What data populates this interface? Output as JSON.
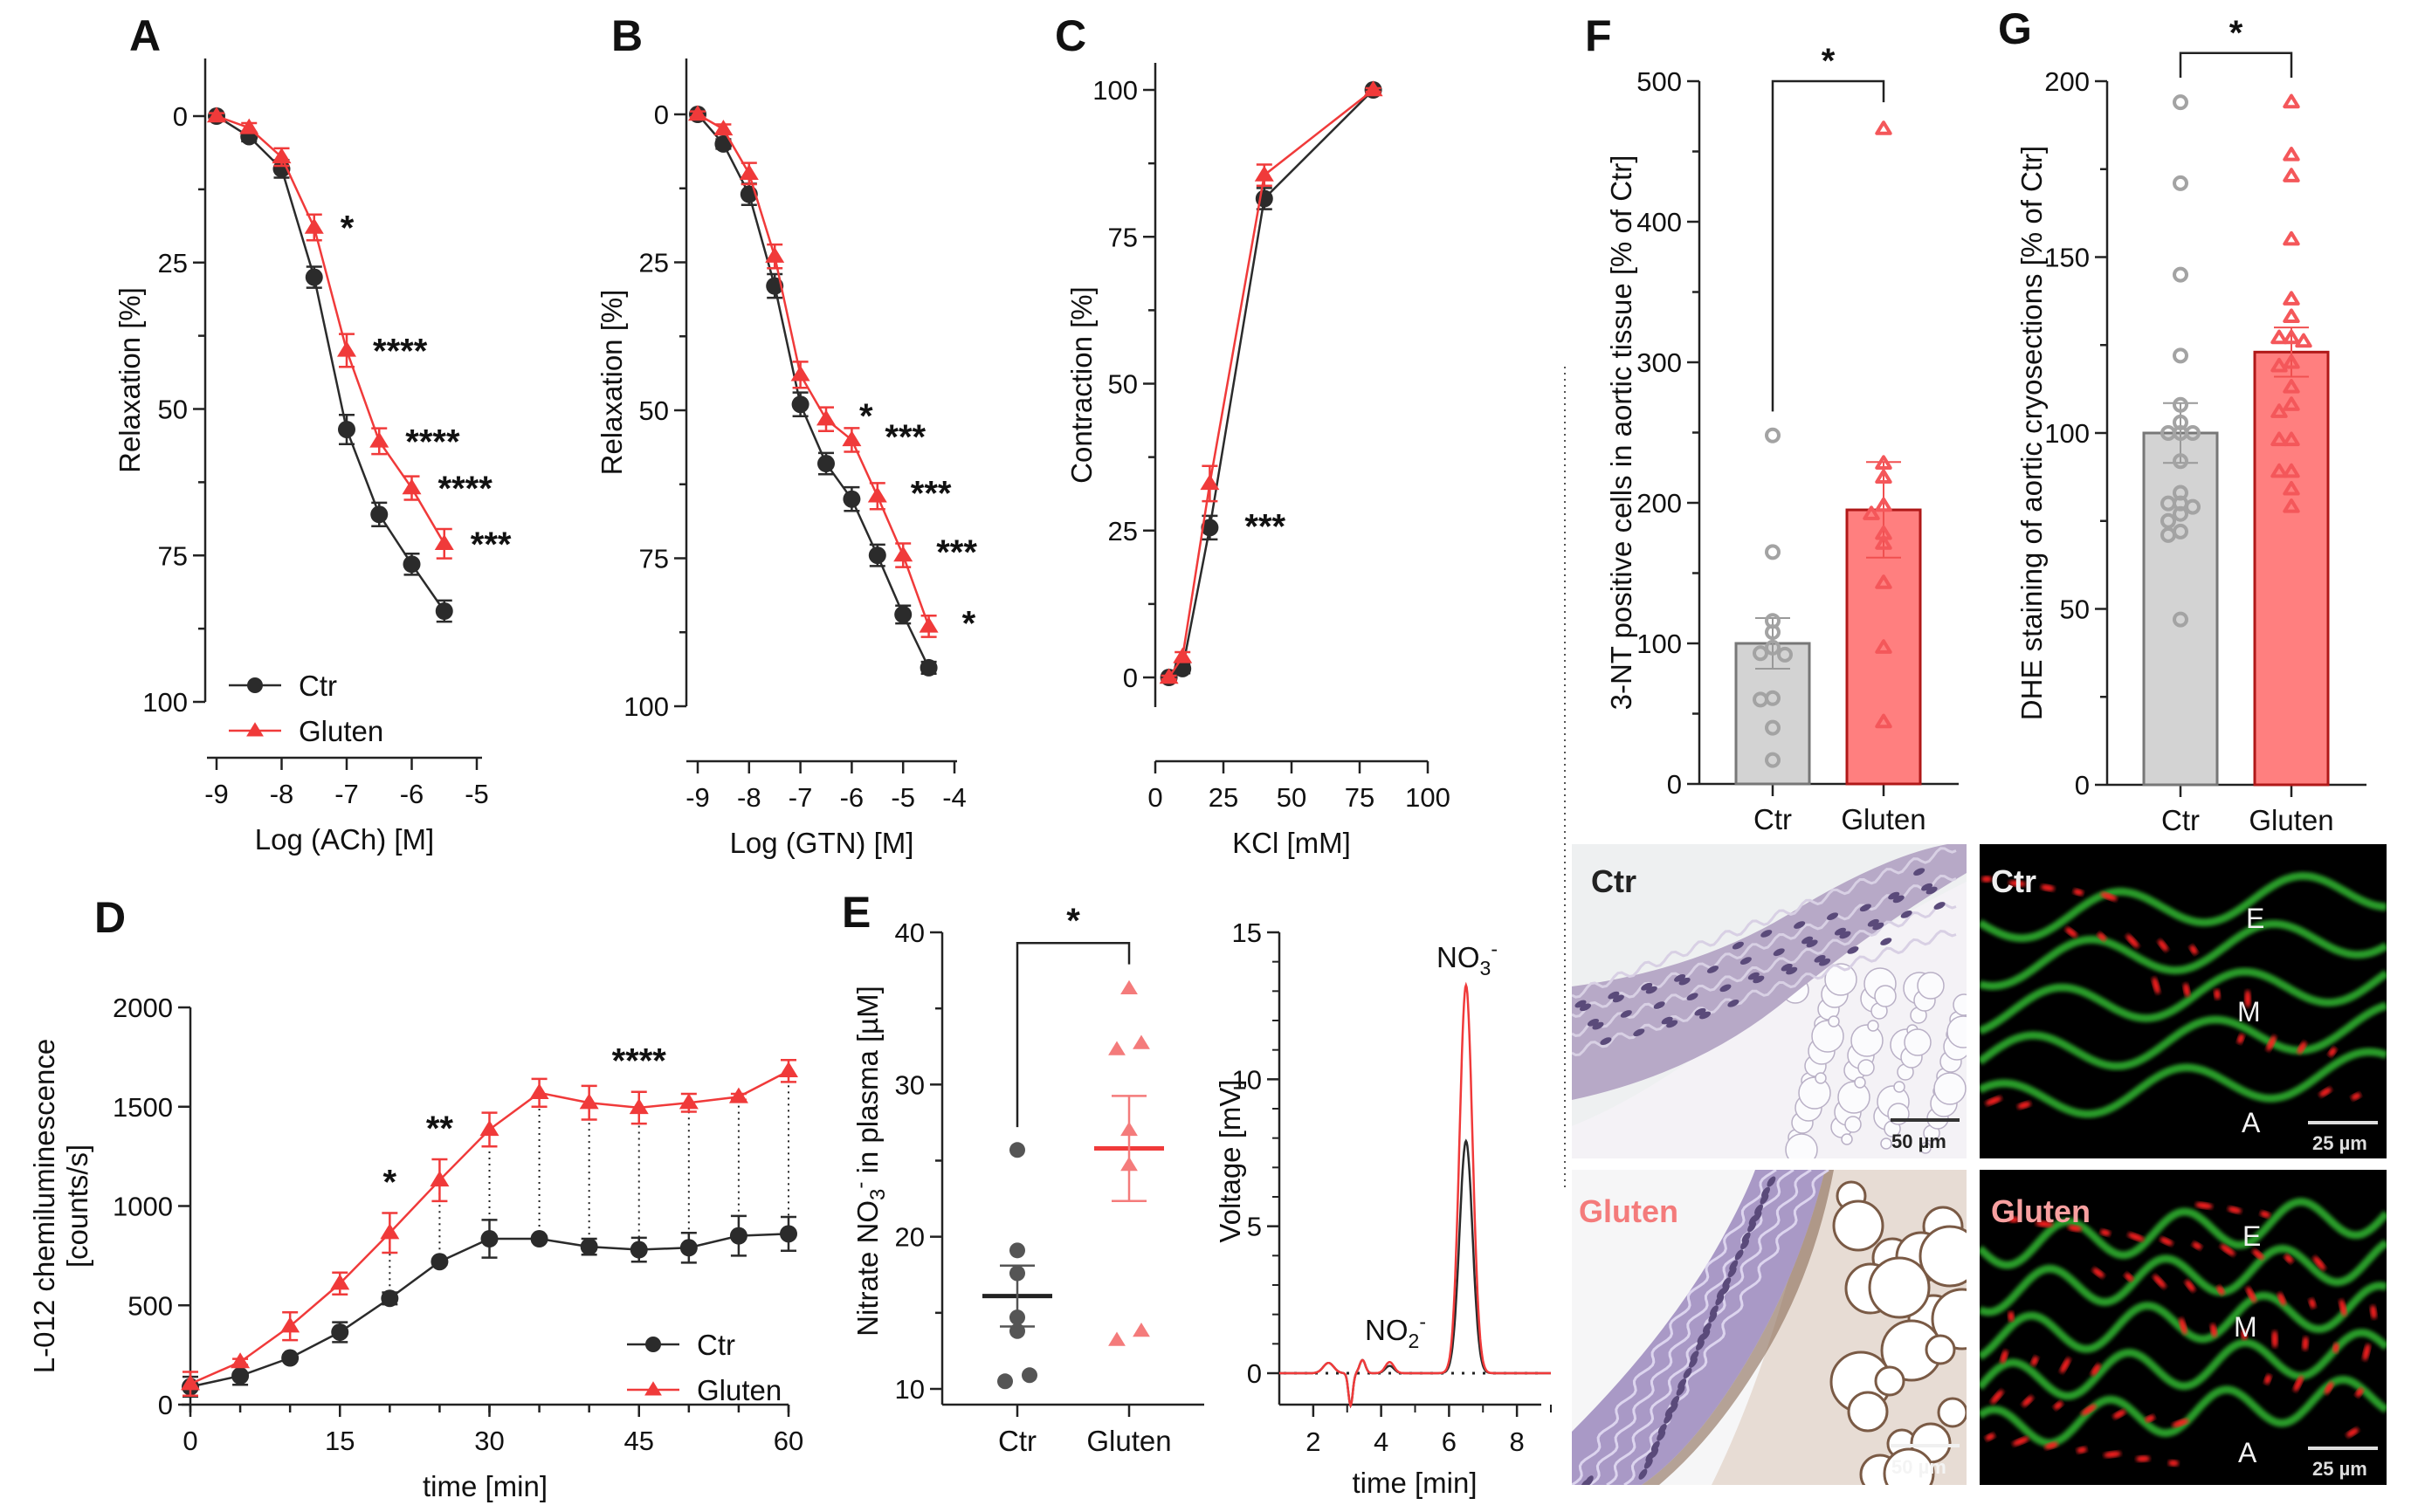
{
  "figure": {
    "colors": {
      "ctr": "#2b2b2b",
      "gluten": "#f03a3a",
      "ctr_bar": "#d3d3d3",
      "ctr_point": "#a3a3a3",
      "gluten_bar": "#ff7f7f",
      "gluten_point": "#f4575a",
      "gluten_label": "#f47b7b"
    }
  },
  "chart_data": [
    {
      "id": "A",
      "panel_letter": "A",
      "type": "line",
      "xlabel": "Log (ACh) [M]",
      "ylabel": "Relaxation [%]",
      "xlim": [
        -9,
        -5
      ],
      "ylim": [
        0,
        100
      ],
      "y_inverted": true,
      "xticks": [
        -9,
        -8,
        -7,
        -6,
        -5
      ],
      "xtick_labels": [
        "-9",
        "-8",
        "-7",
        "-6",
        "-5"
      ],
      "yticks": [
        0,
        25,
        50,
        75,
        100
      ],
      "ytick_labels": [
        "0",
        "25",
        "50",
        "75",
        "100"
      ],
      "legend": {
        "position": "bottom-left",
        "entries": [
          "Ctr",
          "Gluten"
        ]
      },
      "x": [
        -9,
        -8.5,
        -8,
        -7.5,
        -7,
        -6.5,
        -6,
        -5.5
      ],
      "series": [
        {
          "name": "Ctr",
          "marker": "circle",
          "values": [
            0,
            3.5,
            9,
            27.5,
            53.5,
            68,
            76.5,
            84.5
          ],
          "sem": [
            0.5,
            0.8,
            1.5,
            1.8,
            2.5,
            2,
            1.8,
            1.8
          ]
        },
        {
          "name": "Gluten",
          "marker": "triangle",
          "values": [
            0,
            2,
            7,
            19,
            40,
            55.5,
            63.5,
            73
          ],
          "sem": [
            0.5,
            0.8,
            1.5,
            2.2,
            2.8,
            2.2,
            2,
            2.5
          ]
        }
      ],
      "annotations": [
        {
          "x": -7.5,
          "y": 19,
          "text": "*"
        },
        {
          "x": -7,
          "y": 40,
          "text": "****"
        },
        {
          "x": -6.5,
          "y": 55.5,
          "text": "****"
        },
        {
          "x": -6,
          "y": 63.5,
          "text": "****"
        },
        {
          "x": -5.5,
          "y": 73,
          "text": "***"
        }
      ]
    },
    {
      "id": "B",
      "panel_letter": "B",
      "type": "line",
      "xlabel": "Log (GTN) [M]",
      "ylabel": "Relaxation [%]",
      "xlim": [
        -9,
        -4
      ],
      "ylim": [
        0,
        100
      ],
      "y_inverted": true,
      "xticks": [
        -9,
        -8,
        -7,
        -6,
        -5,
        -4
      ],
      "xtick_labels": [
        "-9",
        "-8",
        "-7",
        "-6",
        "-5",
        "-4"
      ],
      "yticks": [
        0,
        25,
        50,
        75,
        100
      ],
      "ytick_labels": [
        "0",
        "25",
        "50",
        "75",
        "100"
      ],
      "x": [
        -9,
        -8.5,
        -8,
        -7.5,
        -7,
        -6.5,
        -6,
        -5.5,
        -5,
        -4.5
      ],
      "series": [
        {
          "name": "Ctr",
          "marker": "circle",
          "values": [
            0,
            5,
            13.5,
            29,
            49,
            59,
            65,
            74.5,
            84.5,
            93.5
          ],
          "sem": [
            0.5,
            0.8,
            1.8,
            2,
            2,
            1.8,
            2,
            1.8,
            1.5,
            1
          ]
        },
        {
          "name": "Gluten",
          "marker": "triangle",
          "values": [
            0,
            2.5,
            10,
            24,
            44,
            51.5,
            55,
            64.5,
            74.5,
            86.5
          ],
          "sem": [
            0.5,
            0.8,
            1.8,
            2,
            2.2,
            2,
            2,
            2.2,
            2,
            1.8
          ]
        }
      ],
      "annotations": [
        {
          "x": -6.5,
          "y": 51.5,
          "text": "*"
        },
        {
          "x": -6,
          "y": 55,
          "text": "***"
        },
        {
          "x": -5.5,
          "y": 64.5,
          "text": "***"
        },
        {
          "x": -5,
          "y": 74.5,
          "text": "***"
        },
        {
          "x": -4.5,
          "y": 86.5,
          "text": "*"
        }
      ]
    },
    {
      "id": "C",
      "panel_letter": "C",
      "type": "line",
      "xlabel": "KCl [mM]",
      "ylabel": "Contraction [%]",
      "xlim": [
        0,
        100
      ],
      "ylim": [
        0,
        100
      ],
      "xticks": [
        0,
        25,
        50,
        75,
        100
      ],
      "xtick_labels": [
        "0",
        "25",
        "50",
        "75",
        "100"
      ],
      "yticks": [
        0,
        25,
        50,
        75,
        100
      ],
      "ytick_labels": [
        "0",
        "25",
        "50",
        "75",
        "100"
      ],
      "x": [
        5,
        10,
        20,
        40,
        80
      ],
      "series": [
        {
          "name": "Ctr",
          "marker": "circle",
          "values": [
            0,
            1.5,
            25.5,
            81.5,
            100
          ],
          "sem": [
            0.3,
            0.8,
            2,
            1.8,
            0.3
          ]
        },
        {
          "name": "Gluten",
          "marker": "triangle",
          "values": [
            0,
            3.5,
            33,
            85.5,
            100
          ],
          "sem": [
            0.3,
            0.8,
            3,
            1.8,
            0.3
          ]
        }
      ],
      "annotations": [
        {
          "x": 20,
          "y": 25.5,
          "text": "***"
        }
      ]
    },
    {
      "id": "D",
      "panel_letter": "D",
      "type": "line",
      "xlabel": "time [min]",
      "ylabel": "L-012 chemiluminescence",
      "ylabel2": "[counts/s]",
      "xlim": [
        0,
        60
      ],
      "ylim": [
        0,
        2000
      ],
      "xticks": [
        0,
        15,
        30,
        45,
        60
      ],
      "xtick_labels": [
        "0",
        "15",
        "30",
        "45",
        "60"
      ],
      "yticks": [
        0,
        500,
        1000,
        1500,
        2000
      ],
      "ytick_labels": [
        "0",
        "500",
        "1000",
        "1500",
        "2000"
      ],
      "legend": {
        "position": "bottom-right",
        "entries": [
          "Ctr",
          "Gluten"
        ]
      },
      "x": [
        0,
        5,
        10,
        15,
        20,
        25,
        30,
        35,
        40,
        45,
        50,
        55,
        60
      ],
      "series": [
        {
          "name": "Ctr",
          "marker": "circle",
          "values": [
            90,
            145,
            235,
            365,
            535,
            720,
            835,
            835,
            795,
            780,
            790,
            850,
            860
          ],
          "sem": [
            50,
            45,
            15,
            50,
            30,
            15,
            95,
            15,
            40,
            60,
            75,
            100,
            85
          ]
        },
        {
          "name": "Gluten",
          "marker": "triangle",
          "values": [
            105,
            215,
            395,
            610,
            865,
            1130,
            1385,
            1570,
            1520,
            1495,
            1520,
            1550,
            1680
          ],
          "sem": [
            60,
            15,
            70,
            55,
            100,
            105,
            85,
            70,
            85,
            80,
            45,
            15,
            55
          ]
        }
      ],
      "dotted_connectors_from_x": 20,
      "annotations": [
        {
          "x": 20,
          "text": "*"
        },
        {
          "x": 25,
          "text": "**"
        },
        {
          "x": 45,
          "text": "****"
        }
      ]
    },
    {
      "id": "E-left",
      "panel_letter": "E",
      "type": "scatter",
      "ylabel": "Nitrate NO3- in plasma [µM]",
      "ylim": [
        10,
        40
      ],
      "yticks": [
        10,
        20,
        30,
        40
      ],
      "ytick_labels": [
        "10",
        "20",
        "30",
        "40"
      ],
      "categories": [
        "Ctr",
        "Gluten"
      ],
      "groups": [
        {
          "name": "Ctr",
          "marker": "circle",
          "points": [
            25.7,
            19.1,
            17.6,
            14.7,
            13.8,
            10.5,
            10.9
          ],
          "mean": 16.1,
          "sem": 2.0
        },
        {
          "name": "Gluten",
          "marker": "triangle",
          "points": [
            36.3,
            32.3,
            32.7,
            27.0,
            24.7,
            13.2,
            13.8
          ],
          "mean": 25.8,
          "sem": 3.45
        }
      ],
      "significance": "*"
    },
    {
      "id": "E-right",
      "type": "line",
      "xlabel": "time [min]",
      "ylabel": "Voltage [mV]",
      "xlim": [
        1,
        9
      ],
      "ylim": [
        -2,
        15
      ],
      "xticks": [
        2,
        4,
        6,
        8
      ],
      "xtick_labels": [
        "2",
        "4",
        "6",
        "8"
      ],
      "yticks": [
        0,
        5,
        10,
        15
      ],
      "ytick_labels": [
        "0",
        "5",
        "10",
        "15"
      ],
      "peaks": [
        {
          "label": "NO2-",
          "x": 4.3
        },
        {
          "label": "NO3-",
          "x": 6.5
        }
      ],
      "series": [
        {
          "name": "Ctr",
          "color_key": "ctr",
          "nitrate_peak_height": 7.9
        },
        {
          "name": "Gluten",
          "color_key": "gluten",
          "nitrate_peak_height": 13.2
        }
      ],
      "baseline": 0
    },
    {
      "id": "F",
      "panel_letter": "F",
      "type": "bar",
      "ylabel": "3-NT positive cells in aortic tissue [% of Ctr]",
      "ylim": [
        0,
        500
      ],
      "yticks": [
        0,
        100,
        200,
        300,
        400,
        500
      ],
      "ytick_labels": [
        "0",
        "100",
        "200",
        "300",
        "400",
        "500"
      ],
      "categories": [
        "Ctr",
        "Gluten"
      ],
      "values": [
        100,
        195
      ],
      "sem": [
        18,
        34
      ],
      "points": [
        [
          248,
          165,
          116,
          108,
          97,
          92,
          93,
          60,
          61,
          40,
          17
        ],
        [
          466,
          228,
          218,
          198,
          192,
          178,
          171,
          143,
          97,
          44
        ]
      ],
      "significance": "*"
    },
    {
      "id": "G",
      "panel_letter": "G",
      "type": "bar",
      "ylabel": "DHE staining of aortic cryosections [% of Ctr]",
      "ylim": [
        0,
        200
      ],
      "yticks": [
        0,
        50,
        100,
        150,
        200
      ],
      "ytick_labels": [
        "0",
        "50",
        "100",
        "150",
        "200"
      ],
      "categories": [
        "Ctr",
        "Gluten"
      ],
      "values": [
        100,
        123
      ],
      "sem": [
        8.5,
        7
      ],
      "points": [
        [
          194,
          171,
          145,
          122,
          108,
          103,
          100,
          100,
          100,
          92,
          83,
          80,
          80,
          79,
          77,
          75,
          72,
          71,
          47
        ],
        [
          194,
          179,
          173,
          155,
          138,
          133,
          127,
          127,
          126,
          120,
          119,
          113,
          108,
          106,
          98,
          98,
          89,
          89,
          84,
          79
        ]
      ],
      "significance": "*"
    }
  ],
  "images": {
    "histology_ctr": {
      "label": "Ctr",
      "scale_bar": "50 µm"
    },
    "histology_gluten": {
      "label": "Gluten",
      "scale_bar": "50 µm"
    },
    "fluorescence_ctr": {
      "label": "Ctr",
      "scale_bar": "25 µm",
      "layers": [
        "E",
        "M",
        "A"
      ]
    },
    "fluorescence_gluten": {
      "label": "Gluten",
      "scale_bar": "25 µm",
      "layers": [
        "E",
        "M",
        "A"
      ]
    }
  }
}
